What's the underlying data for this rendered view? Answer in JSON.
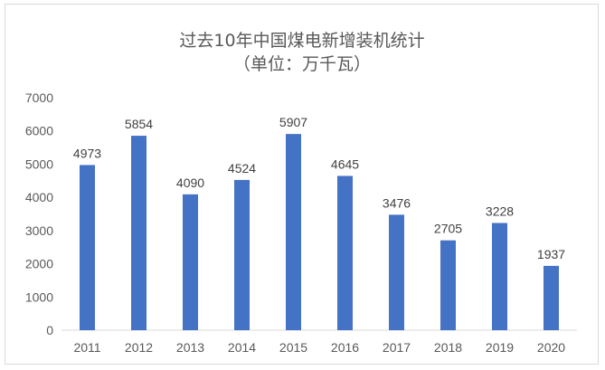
{
  "chart_data": {
    "type": "bar",
    "title": "过去10年中国煤电新增装机统计",
    "subtitle": "（单位：万千瓦）",
    "categories": [
      "2011",
      "2012",
      "2013",
      "2014",
      "2015",
      "2016",
      "2017",
      "2018",
      "2019",
      "2020"
    ],
    "values": [
      4973,
      5854,
      4090,
      4524,
      5907,
      4645,
      3476,
      2705,
      3228,
      1937
    ],
    "data_labels": [
      "4973",
      "5854",
      "4090",
      "4524",
      "5907",
      "4645",
      "3476",
      "2705",
      "3228",
      "1937"
    ],
    "xlabel": "",
    "ylabel": "",
    "ylim": [
      0,
      7000
    ],
    "yticks": [
      "0",
      "1000",
      "2000",
      "3000",
      "4000",
      "5000",
      "6000",
      "7000"
    ],
    "grid": false,
    "legend": "none",
    "colors": {
      "bar": "#4472c4",
      "axis": "#d9d9d9",
      "text": "#595959",
      "label": "#404040"
    }
  }
}
